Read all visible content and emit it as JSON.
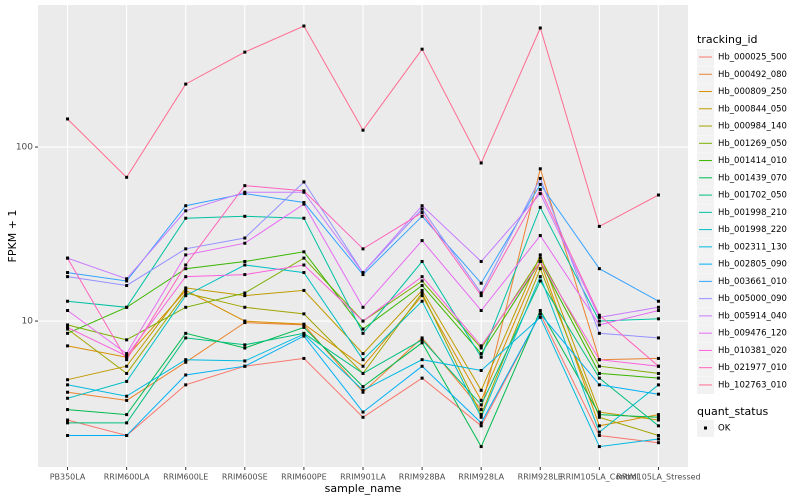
{
  "chart_data": {
    "type": "line",
    "x_label": "sample_name",
    "y_label": "FPKM + 1",
    "categories": [
      "PB350LA",
      "RRIM600LA",
      "RRIM600LE",
      "RRIM600SE",
      "RRIM600PE",
      "RRIM901LA",
      "RRIM928BA",
      "RRIM928LA",
      "RRIM928LE",
      "RRIM105LA_Control",
      "RRIM105LA_Stressed"
    ],
    "log_y": true,
    "grid": true,
    "ylim": [
      1.45,
      655
    ],
    "yticks": [
      10,
      100
    ],
    "legend_title": "tracking_id",
    "legend_position": "right",
    "shape_legend_title": "quant_status",
    "shape_legend_items": [
      "OK"
    ],
    "series": [
      {
        "name": "Hb_000025_500",
        "color": "#F8766D",
        "values": [
          2.7,
          2.2,
          4.3,
          5.5,
          6.1,
          2.8,
          4.7,
          2.5,
          11,
          2.2,
          2.0
        ]
      },
      {
        "name": "Hb_000492_080",
        "color": "#EA8331",
        "values": [
          3.9,
          3.5,
          5.8,
          9.8,
          9.5,
          3.9,
          8,
          3.1,
          75,
          6,
          6.1
        ]
      },
      {
        "name": "Hb_000809_250",
        "color": "#D89000",
        "values": [
          7.2,
          6.2,
          15,
          10,
          9.6,
          5.5,
          14,
          3.5,
          22,
          2.5,
          2.9
        ]
      },
      {
        "name": "Hb_000844_050",
        "color": "#C09B00",
        "values": [
          4.6,
          5.5,
          15.5,
          14,
          15,
          6.5,
          15,
          4,
          24,
          3,
          2.7
        ]
      },
      {
        "name": "Hb_000984_140",
        "color": "#A3A500",
        "values": [
          9,
          5,
          14.5,
          12,
          11,
          5,
          14.5,
          2.9,
          20,
          2.8,
          2.2
        ]
      },
      {
        "name": "Hb_001269_050",
        "color": "#7CAE00",
        "values": [
          9.5,
          7.8,
          12,
          14.5,
          23,
          10,
          17,
          7,
          23,
          5.5,
          5
        ]
      },
      {
        "name": "Hb_001414_010",
        "color": "#39B600",
        "values": [
          8.5,
          12,
          20,
          22,
          25,
          9,
          16,
          6.5,
          22,
          5,
          4.7
        ]
      },
      {
        "name": "Hb_001439_070",
        "color": "#00BB4E",
        "values": [
          3.1,
          2.9,
          8.5,
          7,
          9.2,
          4.2,
          7.5,
          1.9,
          11.5,
          2.9,
          2.8
        ]
      },
      {
        "name": "Hb_001702_050",
        "color": "#00BF7D",
        "values": [
          2.6,
          2.6,
          8,
          7.3,
          8.5,
          5,
          7.8,
          3.3,
          17,
          4.7,
          2.5
        ]
      },
      {
        "name": "Hb_001998_210",
        "color": "#00C1A3",
        "values": [
          13,
          12,
          39,
          40,
          39,
          8.5,
          22,
          6.2,
          45,
          10,
          10.3
        ]
      },
      {
        "name": "Hb_001998_220",
        "color": "#00BFC4",
        "values": [
          3.6,
          4.5,
          14,
          21,
          19,
          6,
          13,
          2.8,
          18,
          2.3,
          4.3
        ]
      },
      {
        "name": "Hb_002311_130",
        "color": "#00BAE0",
        "values": [
          4.3,
          3.7,
          6,
          5.9,
          8.4,
          4,
          6,
          5.2,
          10.5,
          1.9,
          2.1
        ]
      },
      {
        "name": "Hb_002805_090",
        "color": "#00B0F6",
        "values": [
          2.2,
          2.2,
          4.9,
          5.5,
          8.2,
          3,
          5.5,
          2.6,
          11,
          4.3,
          3.8
        ]
      },
      {
        "name": "Hb_003661_010",
        "color": "#35A2FF",
        "values": [
          19,
          17,
          46,
          54,
          48,
          18.5,
          40,
          16.5,
          61,
          20,
          13
        ]
      },
      {
        "name": "Hb_005000_090",
        "color": "#9590FF",
        "values": [
          18,
          16,
          26,
          30,
          63,
          19,
          44,
          14.5,
          66,
          8.5,
          8
        ]
      },
      {
        "name": "Hb_005914_040",
        "color": "#C77CFF",
        "values": [
          23,
          17.5,
          43,
          55,
          55,
          19,
          46,
          22,
          54,
          10.5,
          12
        ]
      },
      {
        "name": "Hb_009476_120",
        "color": "#E76BF3",
        "values": [
          11.5,
          6.5,
          24,
          28,
          47,
          12,
          29,
          11.5,
          31,
          9.5,
          11.5
        ]
      },
      {
        "name": "Hb_010381_020",
        "color": "#FA62DB",
        "values": [
          9.2,
          6.3,
          18,
          18.5,
          21,
          10,
          18,
          7.2,
          22,
          6,
          5.5
        ]
      },
      {
        "name": "Hb_021977_010",
        "color": "#FF62BC",
        "values": [
          23,
          6,
          21,
          60,
          56,
          26,
          42,
          14,
          57,
          10.8,
          5.5
        ]
      },
      {
        "name": "Hb_102763_010",
        "color": "#FF6C91",
        "values": [
          145,
          67,
          230,
          351,
          496,
          125,
          365,
          81,
          483,
          35,
          53
        ]
      }
    ]
  }
}
